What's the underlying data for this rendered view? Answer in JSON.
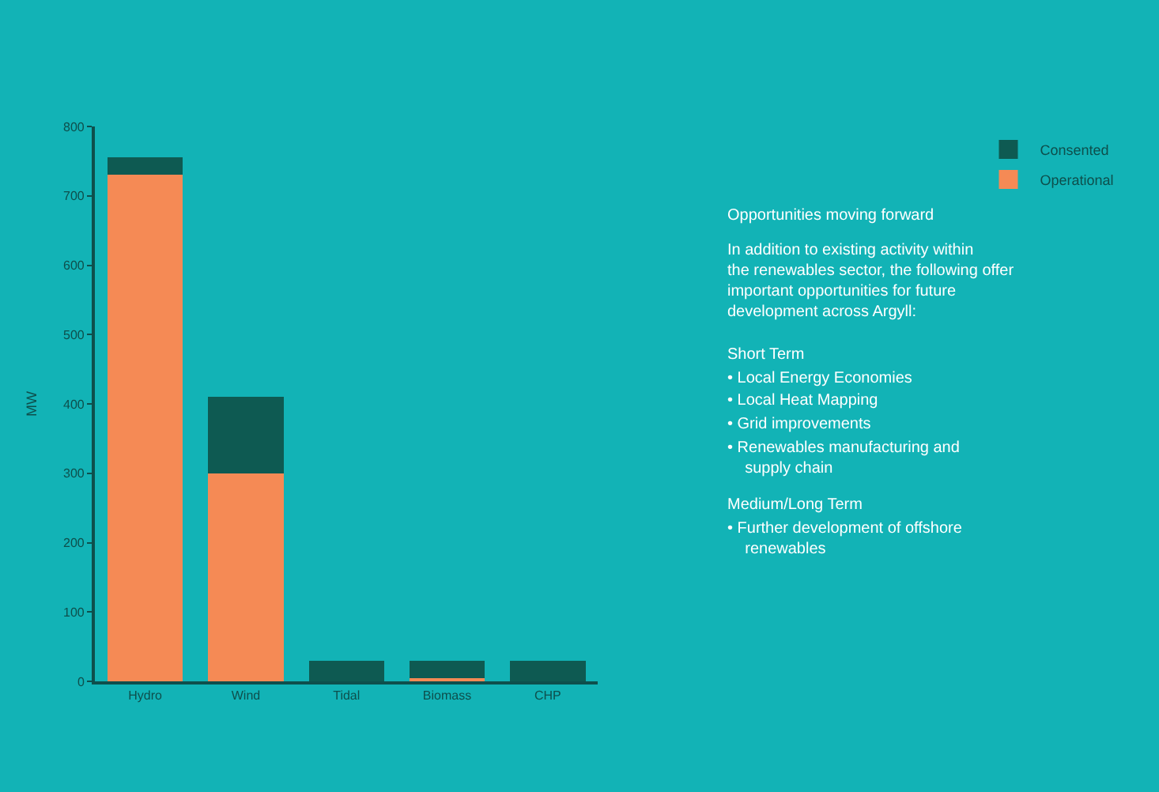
{
  "chart_data": {
    "type": "bar",
    "stacked": true,
    "ylabel": "MW",
    "categories": [
      "Hydro",
      "Wind",
      "Tidal",
      "Biomass",
      "CHP"
    ],
    "series": [
      {
        "name": "Operational",
        "color": "#f58a55",
        "values": [
          730,
          300,
          0,
          5,
          0
        ]
      },
      {
        "name": "Consented",
        "color": "#0e5a52",
        "values": [
          25,
          110,
          30,
          25,
          30
        ]
      }
    ],
    "ylim": [
      0,
      800
    ],
    "yticks": [
      0,
      100,
      200,
      300,
      400,
      500,
      600,
      700,
      800
    ],
    "grid": false,
    "legend": "top right",
    "annotations": [
      "Opportunities moving forward",
      "In addition to existing activity within the renewables sector, the following offer important opportunities for future development across Argyll:",
      "Short Term",
      "• Local Energy Economies",
      "• Local Heat Mapping",
      "• Grid improvements",
      "• Renewables manufacturing and supply chain",
      "Medium/Long Term",
      "• Further development of offshore renewables"
    ]
  }
}
